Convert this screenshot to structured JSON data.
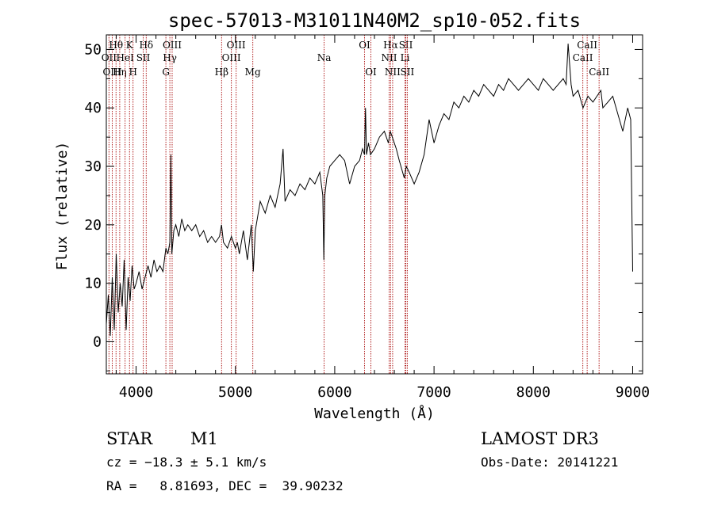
{
  "chart_data": {
    "type": "line",
    "title": "spec-57013-M31011N40M2_sp10-052.fits",
    "xlabel": "Wavelength (Å)",
    "ylabel": "Flux (relative)",
    "xlim": [
      3700,
      9100
    ],
    "ylim": [
      -5.5,
      52.5
    ],
    "xticks": [
      4000,
      5000,
      6000,
      7000,
      8000,
      9000
    ],
    "yticks": [
      0,
      10,
      20,
      30,
      40,
      50
    ],
    "grid": false,
    "series": [
      {
        "name": "spectrum",
        "color": "#000000",
        "x": [
          3700,
          3720,
          3740,
          3760,
          3780,
          3800,
          3820,
          3840,
          3860,
          3880,
          3900,
          3920,
          3940,
          3960,
          3980,
          4000,
          4030,
          4060,
          4090,
          4120,
          4150,
          4180,
          4210,
          4240,
          4270,
          4300,
          4320,
          4340,
          4350,
          4360,
          4380,
          4400,
          4430,
          4460,
          4490,
          4520,
          4560,
          4600,
          4640,
          4680,
          4720,
          4760,
          4800,
          4840,
          4860,
          4880,
          4920,
          4960,
          5000,
          5020,
          5040,
          5080,
          5120,
          5160,
          5180,
          5200,
          5250,
          5300,
          5350,
          5400,
          5450,
          5480,
          5500,
          5550,
          5600,
          5650,
          5700,
          5750,
          5800,
          5850,
          5880,
          5890,
          5900,
          5920,
          5950,
          6000,
          6050,
          6100,
          6150,
          6200,
          6250,
          6280,
          6300,
          6310,
          6320,
          6340,
          6360,
          6400,
          6450,
          6500,
          6540,
          6560,
          6580,
          6620,
          6650,
          6700,
          6720,
          6750,
          6800,
          6850,
          6900,
          6950,
          7000,
          7050,
          7100,
          7150,
          7200,
          7250,
          7300,
          7350,
          7400,
          7450,
          7500,
          7550,
          7600,
          7650,
          7700,
          7750,
          7800,
          7850,
          7900,
          7950,
          8000,
          8050,
          8100,
          8150,
          8200,
          8250,
          8300,
          8330,
          8350,
          8380,
          8400,
          8450,
          8500,
          8550,
          8600,
          8640,
          8680,
          8700,
          8750,
          8800,
          8850,
          8900,
          8950,
          8980,
          9000
        ],
        "values": [
          3,
          8,
          1,
          11,
          2,
          15,
          5,
          10,
          6,
          14,
          2,
          11,
          7,
          13,
          9,
          10,
          12,
          9,
          11,
          13,
          11,
          14,
          12,
          13,
          12,
          16,
          15,
          17,
          32,
          15,
          19,
          20,
          18,
          21,
          19,
          20,
          19,
          20,
          18,
          19,
          17,
          18,
          17,
          18,
          20,
          17,
          16,
          18,
          16,
          17,
          15,
          19,
          14,
          20,
          12,
          19,
          24,
          22,
          25,
          23,
          27,
          33,
          24,
          26,
          25,
          27,
          26,
          28,
          27,
          29,
          25,
          14,
          25,
          28,
          30,
          31,
          32,
          31,
          27,
          30,
          31,
          33,
          32,
          40,
          32,
          34,
          32,
          33,
          35,
          36,
          34,
          36,
          35,
          33,
          31,
          28,
          30,
          29,
          27,
          29,
          32,
          38,
          34,
          37,
          39,
          38,
          41,
          40,
          42,
          41,
          43,
          42,
          44,
          43,
          42,
          44,
          43,
          45,
          44,
          43,
          44,
          45,
          44,
          43,
          45,
          44,
          43,
          44,
          45,
          44,
          51,
          44,
          42,
          43,
          40,
          42,
          41,
          42,
          43,
          40,
          41,
          42,
          39,
          36,
          40,
          38,
          12
        ]
      }
    ],
    "line_markers": [
      {
        "label": "Hθ",
        "wavelength": 3798,
        "row": 1
      },
      {
        "label": "OII",
        "wavelength": 3727,
        "row": 2
      },
      {
        "label": "Hη",
        "wavelength": 3835,
        "row": 3
      },
      {
        "label": "OIII",
        "wavelength": 3760,
        "row": 3
      },
      {
        "label": "HeI",
        "wavelength": 3889,
        "row": 2
      },
      {
        "label": "K",
        "wavelength": 3934,
        "row": 1
      },
      {
        "label": "H",
        "wavelength": 3969,
        "row": 3
      },
      {
        "label": "SII",
        "wavelength": 4072,
        "row": 2
      },
      {
        "label": "Hδ",
        "wavelength": 4102,
        "row": 1
      },
      {
        "label": "G",
        "wavelength": 4300,
        "row": 3
      },
      {
        "label": "Hγ",
        "wavelength": 4340,
        "row": 2
      },
      {
        "label": "OIII",
        "wavelength": 4363,
        "row": 1
      },
      {
        "label": "Hβ",
        "wavelength": 4861,
        "row": 3
      },
      {
        "label": "OIII",
        "wavelength": 4959,
        "row": 2
      },
      {
        "label": "OIII",
        "wavelength": 5007,
        "row": 1
      },
      {
        "label": "Mg",
        "wavelength": 5175,
        "row": 3
      },
      {
        "label": "Na",
        "wavelength": 5893,
        "row": 2
      },
      {
        "label": "OI",
        "wavelength": 6300,
        "row": 1
      },
      {
        "label": "OI",
        "wavelength": 6364,
        "row": 3
      },
      {
        "label": "NII",
        "wavelength": 6548,
        "row": 2
      },
      {
        "label": "Hα",
        "wavelength": 6563,
        "row": 1
      },
      {
        "label": "NII",
        "wavelength": 6583,
        "row": 3
      },
      {
        "label": "SII",
        "wavelength": 6716,
        "row": 1
      },
      {
        "label": "Li",
        "wavelength": 6708,
        "row": 2
      },
      {
        "label": "SII",
        "wavelength": 6731,
        "row": 3
      },
      {
        "label": "CaII",
        "wavelength": 8498,
        "row": 2
      },
      {
        "label": "CaII",
        "wavelength": 8542,
        "row": 1
      },
      {
        "label": "CaII",
        "wavelength": 8662,
        "row": 3
      }
    ]
  },
  "info": {
    "object_class": "STAR",
    "subclass": "M1",
    "survey": "LAMOST DR3",
    "redshift_text": "cz = −18.3 ± 5.1 km/s",
    "obs_date": "Obs-Date: 20141221",
    "coords": "RA =   8.81693, DEC =  39.90232"
  },
  "colors": {
    "spectrum": "#000000",
    "marker_line": "#b22222",
    "axes": "#000000"
  }
}
